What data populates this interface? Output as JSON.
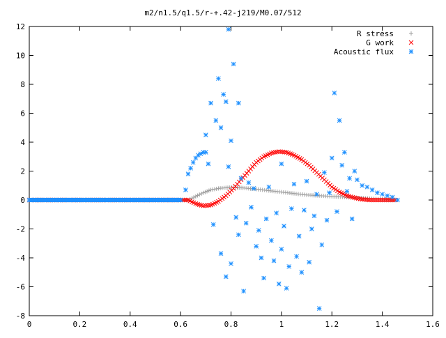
{
  "chart_data": {
    "type": "scatter",
    "title": "m2/n1.5/q1.5/r-+.42-j219/M0.07/512",
    "xlabel": "",
    "ylabel": "",
    "xlim": [
      0,
      1.6
    ],
    "ylim": [
      -8,
      12
    ],
    "xticks": [
      0,
      0.2,
      0.4,
      0.6,
      0.8,
      1,
      1.2,
      1.4,
      1.6
    ],
    "xtick_labels": [
      "0",
      "0.2",
      "0.4",
      "0.6",
      "0.8",
      "1",
      "1.2",
      "1.4",
      "1.6"
    ],
    "yticks": [
      -8,
      -6,
      -4,
      -2,
      0,
      2,
      4,
      6,
      8,
      10,
      12
    ],
    "ytick_labels": [
      "-8",
      "-6",
      "-4",
      "-2",
      "0",
      "2",
      "4",
      "6",
      "8",
      "10",
      "12"
    ],
    "grid": false,
    "legend_position": "top-right",
    "series": [
      {
        "name": "R stress",
        "marker": "plus",
        "color": "#a0a0a0",
        "x": [
          0.0,
          0.1,
          0.2,
          0.3,
          0.4,
          0.5,
          0.6,
          0.63,
          0.66,
          0.69,
          0.72,
          0.75,
          0.78,
          0.81,
          0.84,
          0.87,
          0.9,
          0.95,
          1.0,
          1.05,
          1.1,
          1.15,
          1.2,
          1.25,
          1.3,
          1.35,
          1.4,
          1.45
        ],
        "y": [
          0,
          0,
          0,
          0,
          0,
          0,
          0,
          0.0,
          0.25,
          0.5,
          0.7,
          0.8,
          0.85,
          0.87,
          0.85,
          0.8,
          0.75,
          0.65,
          0.55,
          0.45,
          0.35,
          0.3,
          0.25,
          0.2,
          0.15,
          0.1,
          0.05,
          0.0
        ]
      },
      {
        "name": "G work",
        "marker": "cross",
        "color": "#ff0000",
        "x": [
          0.0,
          0.1,
          0.2,
          0.3,
          0.4,
          0.5,
          0.6,
          0.63,
          0.66,
          0.69,
          0.72,
          0.75,
          0.78,
          0.81,
          0.84,
          0.87,
          0.9,
          0.93,
          0.96,
          0.99,
          1.02,
          1.05,
          1.08,
          1.11,
          1.14,
          1.17,
          1.2,
          1.23,
          1.26,
          1.29,
          1.32,
          1.35,
          1.4,
          1.45
        ],
        "y": [
          0,
          0,
          0,
          0,
          0,
          0,
          0,
          0.0,
          -0.25,
          -0.4,
          -0.35,
          -0.1,
          0.3,
          0.8,
          1.4,
          2.0,
          2.6,
          3.0,
          3.25,
          3.35,
          3.3,
          3.1,
          2.8,
          2.4,
          1.9,
          1.4,
          0.9,
          0.55,
          0.3,
          0.15,
          0.05,
          0.0,
          0.0,
          0.0
        ]
      },
      {
        "name": "Acoustic flux",
        "marker": "star",
        "color": "#1e90ff",
        "x": [
          0.0,
          0.1,
          0.2,
          0.3,
          0.4,
          0.5,
          0.6,
          0.62,
          0.63,
          0.64,
          0.65,
          0.66,
          0.67,
          0.68,
          0.69,
          0.7,
          0.7,
          0.71,
          0.72,
          0.73,
          0.74,
          0.75,
          0.76,
          0.76,
          0.77,
          0.78,
          0.78,
          0.79,
          0.79,
          0.8,
          0.8,
          0.81,
          0.82,
          0.83,
          0.83,
          0.84,
          0.85,
          0.86,
          0.87,
          0.88,
          0.89,
          0.9,
          0.91,
          0.92,
          0.93,
          0.94,
          0.95,
          0.96,
          0.97,
          0.98,
          0.99,
          1.0,
          1.0,
          1.01,
          1.02,
          1.03,
          1.04,
          1.05,
          1.06,
          1.07,
          1.08,
          1.09,
          1.1,
          1.11,
          1.12,
          1.13,
          1.14,
          1.15,
          1.16,
          1.17,
          1.18,
          1.19,
          1.2,
          1.21,
          1.22,
          1.23,
          1.24,
          1.25,
          1.26,
          1.27,
          1.28,
          1.29,
          1.3,
          1.32,
          1.34,
          1.36,
          1.38,
          1.4,
          1.42,
          1.44,
          1.46
        ],
        "y": [
          0,
          0,
          0,
          0,
          0,
          0,
          0,
          0.7,
          1.8,
          2.2,
          2.6,
          2.9,
          3.1,
          3.2,
          3.3,
          3.3,
          4.5,
          2.5,
          6.7,
          -1.7,
          5.5,
          8.4,
          5.0,
          -3.7,
          7.3,
          6.8,
          -5.3,
          11.8,
          2.3,
          -4.4,
          4.1,
          9.4,
          -1.2,
          6.7,
          -2.4,
          1.5,
          -6.3,
          -1.6,
          1.2,
          -0.5,
          0.8,
          -3.2,
          -2.1,
          -4.0,
          -5.4,
          -1.3,
          0.9,
          -2.8,
          -4.2,
          -0.9,
          -5.8,
          -3.4,
          2.5,
          -1.8,
          -6.1,
          -4.6,
          -0.6,
          1.1,
          -3.9,
          -2.5,
          -5.0,
          -0.7,
          1.3,
          -4.3,
          -2.0,
          -1.1,
          0.4,
          -7.5,
          -3.1,
          1.9,
          -1.4,
          0.5,
          2.9,
          7.4,
          -0.8,
          5.5,
          2.4,
          3.3,
          0.6,
          1.5,
          -1.3,
          2.0,
          1.4,
          1.0,
          0.9,
          0.7,
          0.5,
          0.4,
          0.3,
          0.2,
          0.0
        ]
      }
    ]
  }
}
